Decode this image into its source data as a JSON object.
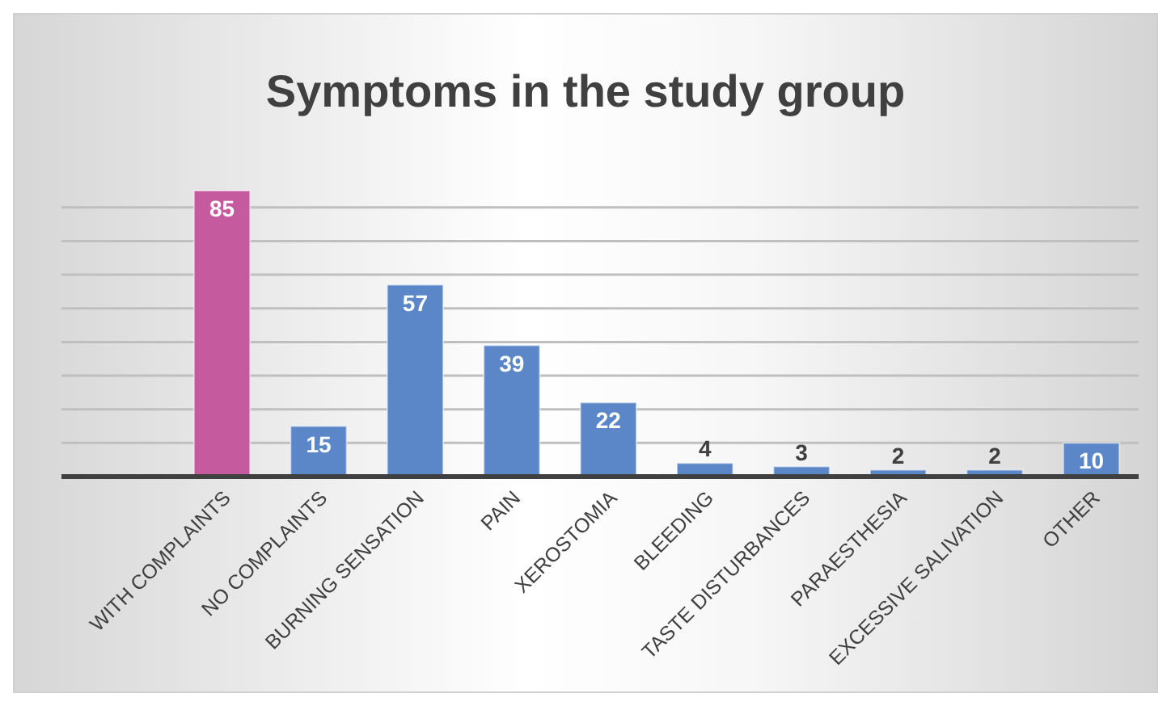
{
  "chart_data": {
    "type": "bar",
    "title": "Symptoms in the study group",
    "categories": [
      "WITH COMPLAINTS",
      "NO COMPLAINTS",
      "BURNING SENSATION",
      "PAIN",
      "XEROSTOMIA",
      "BLEEDING",
      "TASTE DISTURBANCES",
      "PARAESTHESIA",
      "EXCESSIVE SALIVATION",
      "OTHER"
    ],
    "values": [
      85,
      15,
      57,
      39,
      22,
      4,
      3,
      2,
      2,
      10
    ],
    "colors": [
      "#c55a9f",
      "#5b87c9",
      "#5b87c9",
      "#5b87c9",
      "#5b87c9",
      "#5b87c9",
      "#5b87c9",
      "#5b87c9",
      "#5b87c9",
      "#5b87c9"
    ],
    "yticks": [
      {
        "value": 0,
        "label": null
      },
      {
        "value": 10,
        "label": null
      },
      {
        "value": 20,
        "label": null
      },
      {
        "value": 30,
        "label": null
      },
      {
        "value": 40,
        "label": null
      },
      {
        "value": 50,
        "label": null
      },
      {
        "value": 60,
        "label": null
      },
      {
        "value": 70,
        "label": null
      },
      {
        "value": 80,
        "label": null
      }
    ],
    "tick_labels": "x",
    "grid": "y",
    "data_labels": true
  }
}
